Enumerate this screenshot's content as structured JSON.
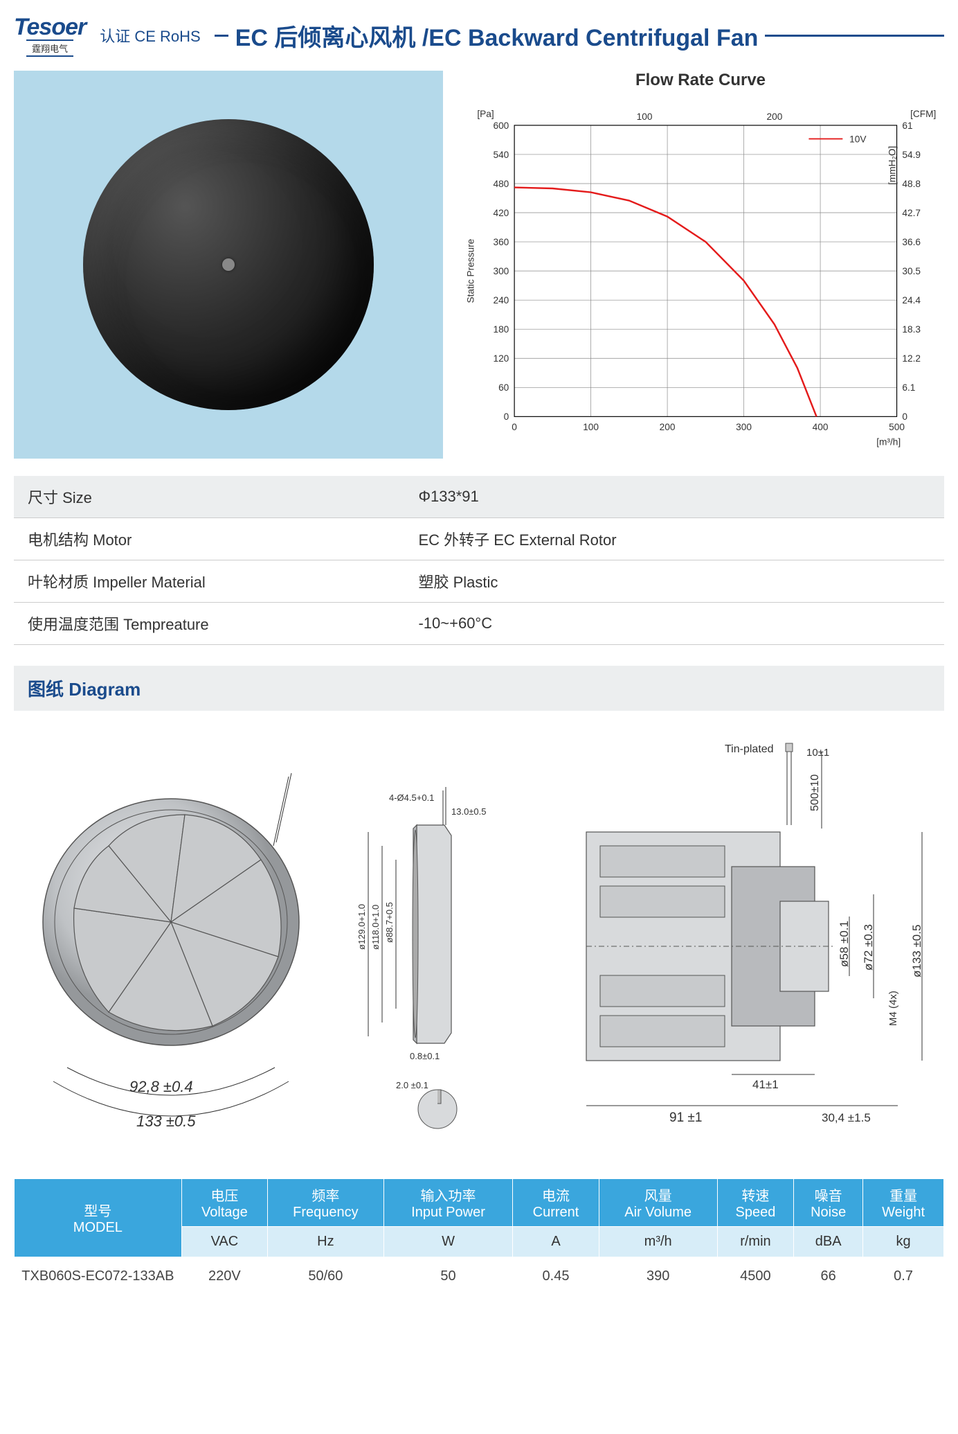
{
  "brand": {
    "name": "Tesoer",
    "sub": "霆翔电气",
    "cert": "认证 CE RoHS"
  },
  "title": "EC 后倾离心风机 /EC Backward Centrifugal Fan",
  "chart": {
    "title": "Flow Rate Curve",
    "legend": "10V",
    "x_label": "[m³/h]",
    "x_top_label": "[CFM]",
    "y_left_unit": "[Pa]",
    "y_left_label": "Static Pressure",
    "y_right_unit": "[mmH₂O]",
    "x_min": 0,
    "x_max": 500,
    "y_min": 0,
    "y_max": 600,
    "x_ticks": [
      0,
      100,
      200,
      300,
      400,
      500
    ],
    "x_top_ticks": [
      100,
      200
    ],
    "y_left_ticks": [
      0,
      60,
      120,
      180,
      240,
      300,
      360,
      420,
      480,
      540,
      600
    ],
    "y_right_ticks": [
      0,
      6.1,
      12.2,
      18.3,
      24.4,
      30.5,
      36.6,
      42.7,
      48.8,
      54.9,
      61
    ],
    "curve_points": [
      [
        0,
        472
      ],
      [
        50,
        470
      ],
      [
        100,
        462
      ],
      [
        150,
        445
      ],
      [
        200,
        412
      ],
      [
        250,
        360
      ],
      [
        300,
        280
      ],
      [
        340,
        190
      ],
      [
        370,
        100
      ],
      [
        395,
        0
      ]
    ],
    "curve_color": "#e41b1b",
    "grid_color": "#888",
    "bg_color": "#ffffff"
  },
  "specs": [
    {
      "label": "尺寸 Size",
      "value": "Φ133*91"
    },
    {
      "label": "电机结构 Motor",
      "value": "EC 外转子 EC External Rotor"
    },
    {
      "label": "叶轮材质 Impeller Material",
      "value": "塑胶  Plastic"
    },
    {
      "label": "使用温度范围 Tempreature",
      "value": "-10~+60°C"
    }
  ],
  "diagram_header": "图纸 Diagram",
  "diagram_dims": {
    "front_w": "133 ±0.5",
    "front_h": "92,8 ±0.4",
    "side_d1": "ø88.7+0.5",
    "side_d2": "ø118.0+1.0",
    "side_d3": "ø129.0+1.0",
    "side_hole": "4-Ø4.5+0.1",
    "side_rim": "13.0±0.5",
    "side_thk": "0.8±0.1",
    "detail_t": "2.0 ±0.1",
    "tin": "Tin-plated",
    "cable_tip": "10±1",
    "cable_len": "500±10",
    "back_d1": "ø58 ±0.1",
    "back_d2": "ø72 ±0.3",
    "back_d3": "ø133 ±0.5",
    "back_m": "M4 (4x)",
    "back_depth": "41±1",
    "back_total": "91 ±1",
    "back_flange": "30,4 ±1.5"
  },
  "model_table": {
    "headers": [
      {
        "cn": "型号",
        "en": "MODEL"
      },
      {
        "cn": "电压",
        "en": "Voltage"
      },
      {
        "cn": "频率",
        "en": "Frequency"
      },
      {
        "cn": "输入功率",
        "en": "Input Power"
      },
      {
        "cn": "电流",
        "en": "Current"
      },
      {
        "cn": "风量",
        "en": "Air Volume"
      },
      {
        "cn": "转速",
        "en": "Speed"
      },
      {
        "cn": "噪音",
        "en": "Noise"
      },
      {
        "cn": "重量",
        "en": "Weight"
      }
    ],
    "units": [
      "",
      "VAC",
      "Hz",
      "W",
      "A",
      "m³/h",
      "r/min",
      "dBA",
      "kg"
    ],
    "rows": [
      [
        "TXB060S-EC072-133AB",
        "220V",
        "50/60",
        "50",
        "0.45",
        "390",
        "4500",
        "66",
        "0.7"
      ]
    ]
  }
}
